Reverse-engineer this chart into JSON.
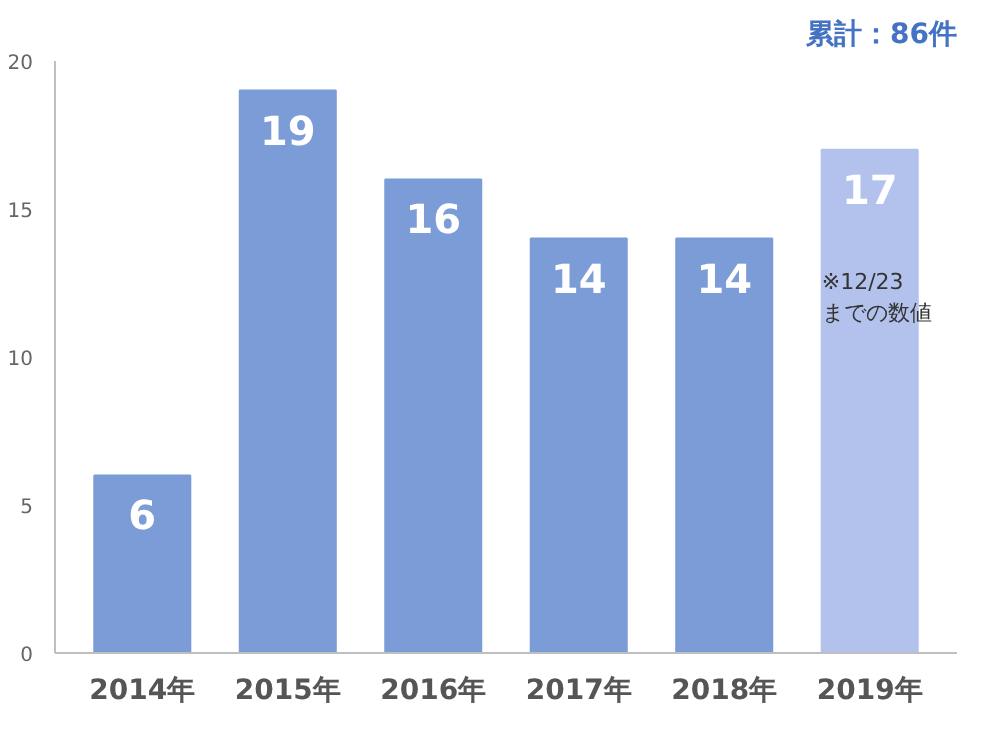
{
  "chart_data": {
    "type": "bar",
    "categories": [
      "2014年",
      "2015年",
      "2016年",
      "2017年",
      "2018年",
      "2019年"
    ],
    "values": [
      6,
      19,
      16,
      14,
      14,
      17
    ],
    "colors": [
      "#7b9cd6",
      "#7b9cd6",
      "#7b9cd6",
      "#7b9cd6",
      "#7b9cd6",
      "#b3c2ec"
    ],
    "ylim": [
      0,
      20
    ],
    "yticks": [
      0,
      5,
      10,
      15,
      20
    ],
    "grid": false,
    "data_labels": true,
    "annotations": [
      "累計：86件",
      "※12/23\nまでの数値"
    ]
  }
}
